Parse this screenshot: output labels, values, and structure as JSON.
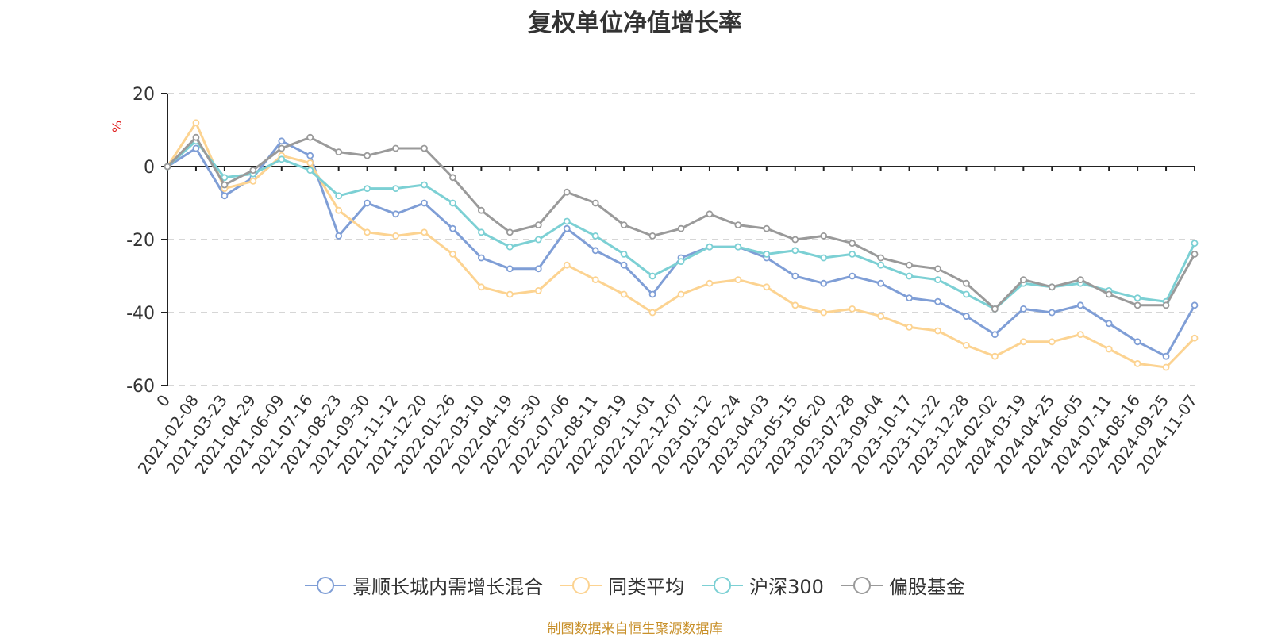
{
  "chart_data": {
    "type": "line",
    "title": "复权单位净值增长率",
    "ylabel": "%",
    "ylim": [
      -60,
      20
    ],
    "yticks": [
      20,
      0,
      -20,
      -40,
      -60
    ],
    "grid": true,
    "legend_position": "bottom",
    "categories": [
      "0",
      "2021-02-08",
      "2021-03-23",
      "2021-04-29",
      "2021-06-09",
      "2021-07-16",
      "2021-08-23",
      "2021-09-30",
      "2021-11-12",
      "2021-12-20",
      "2022-01-26",
      "2022-03-10",
      "2022-04-19",
      "2022-05-30",
      "2022-07-06",
      "2022-08-11",
      "2022-09-19",
      "2022-11-01",
      "2022-12-07",
      "2023-01-12",
      "2023-02-24",
      "2023-04-03",
      "2023-05-15",
      "2023-06-20",
      "2023-07-28",
      "2023-09-04",
      "2023-10-17",
      "2023-11-22",
      "2023-12-28",
      "2024-02-02",
      "2024-03-19",
      "2024-04-25",
      "2024-06-05",
      "2024-07-11",
      "2024-08-16",
      "2024-09-25",
      "2024-11-07"
    ],
    "series": [
      {
        "name": "景顺长城内需增长混合",
        "color": "#7f9ed6",
        "values": [
          0,
          5,
          -8,
          -3,
          7,
          3,
          -19,
          -10,
          -13,
          -10,
          -17,
          -25,
          -28,
          -28,
          -17,
          -23,
          -27,
          -35,
          -25,
          -22,
          -22,
          -25,
          -30,
          -32,
          -30,
          -32,
          -36,
          -37,
          -41,
          -46,
          -39,
          -40,
          -38,
          -43,
          -48,
          -52,
          -38
        ]
      },
      {
        "name": "同类平均",
        "color": "#fcd391",
        "values": [
          0,
          12,
          -6,
          -4,
          3,
          1,
          -12,
          -18,
          -19,
          -18,
          -24,
          -33,
          -35,
          -34,
          -27,
          -31,
          -35,
          -40,
          -35,
          -32,
          -31,
          -33,
          -38,
          -40,
          -39,
          -41,
          -44,
          -45,
          -49,
          -52,
          -48,
          -48,
          -46,
          -50,
          -54,
          -55,
          -47
        ]
      },
      {
        "name": "沪深300",
        "color": "#7cd0d4",
        "values": [
          0,
          7,
          -3,
          -2,
          2,
          -1,
          -8,
          -6,
          -6,
          -5,
          -10,
          -18,
          -22,
          -20,
          -15,
          -19,
          -24,
          -30,
          -26,
          -22,
          -22,
          -24,
          -23,
          -25,
          -24,
          -27,
          -30,
          -31,
          -35,
          -39,
          -32,
          -33,
          -32,
          -34,
          -36,
          -37,
          -21
        ]
      },
      {
        "name": "偏股基金",
        "color": "#9a9a9a",
        "values": [
          0,
          8,
          -5,
          -1,
          5,
          8,
          4,
          3,
          5,
          5,
          -3,
          -12,
          -18,
          -16,
          -7,
          -10,
          -16,
          -19,
          -17,
          -13,
          -16,
          -17,
          -20,
          -19,
          -21,
          -25,
          -27,
          -28,
          -32,
          -39,
          -31,
          -33,
          -31,
          -35,
          -38,
          -38,
          -24
        ]
      }
    ]
  },
  "source_text": "制图数据来自恒生聚源数据库"
}
